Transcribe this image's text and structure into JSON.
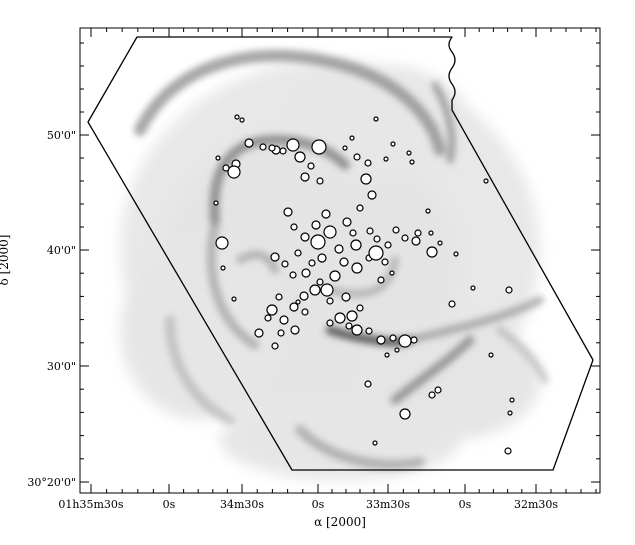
{
  "figure": {
    "x_axis_label": "α [2000]",
    "y_axis_label": "δ [2000]",
    "y_tick_labels": [
      "50'0\"",
      "40'0\"",
      "30'0\"",
      "30°20'0\""
    ],
    "x_tick_labels": [
      "01h35m30s",
      "0s",
      "34m30s",
      "0s",
      "33m30s",
      "0s",
      "32m30s"
    ]
  }
}
